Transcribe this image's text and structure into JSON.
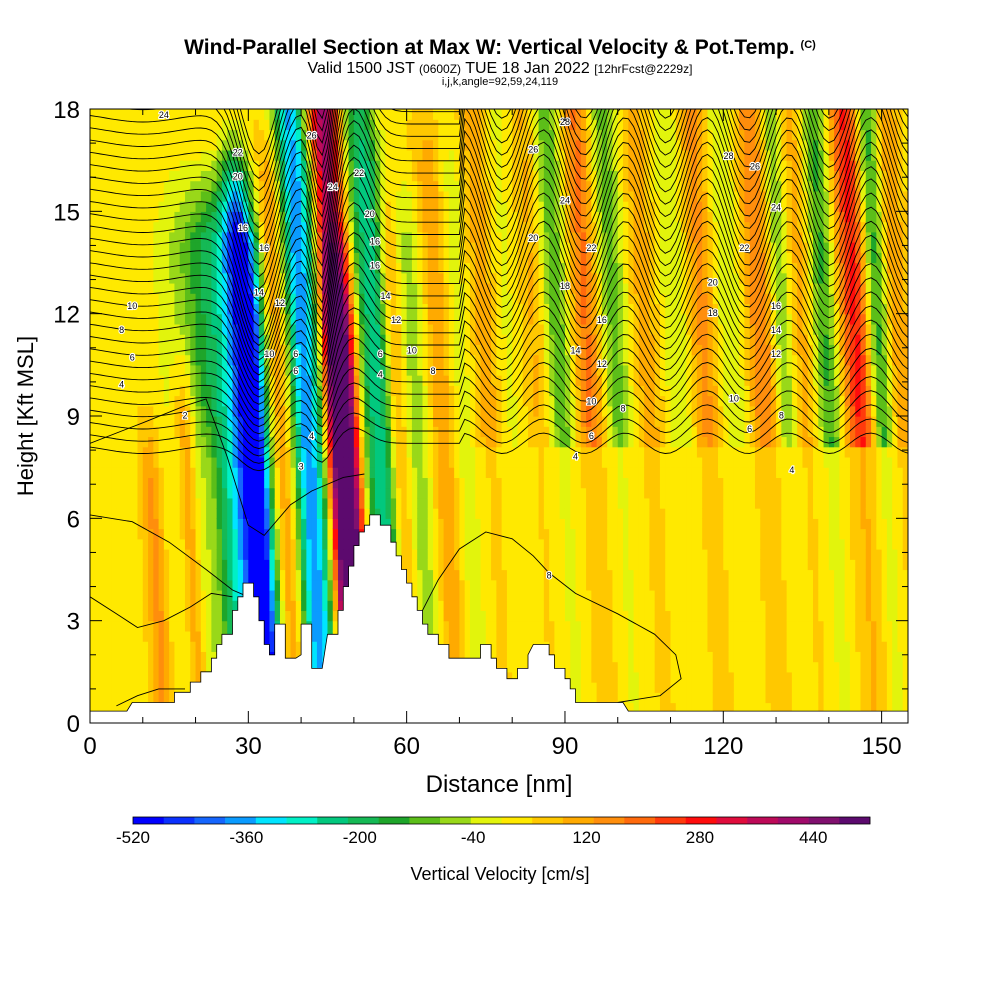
{
  "chart_data": {
    "type": "heatmap",
    "title": "Wind-Parallel Section at Max W: Vertical Velocity & Pot.Temp.",
    "title_mark": "(C)",
    "subtitle": {
      "prefix": "Valid 1500 JST",
      "utc": "(0600Z)",
      "date": "TUE 18 Jan 2022",
      "fcst": "[12hrFcst@2229z]"
    },
    "subtitle2": "i,j,k,angle=92,59,24,119",
    "xlabel": "Distance [nm]",
    "ylabel": "Height [Kft MSL]",
    "xlim": [
      0,
      155
    ],
    "ylim": [
      0,
      18
    ],
    "xticks": [
      "0",
      "30",
      "60",
      "90",
      "120",
      "150"
    ],
    "yticks": [
      "0",
      "3",
      "6",
      "9",
      "12",
      "15",
      "18"
    ],
    "colorbar": {
      "label": "Vertical Velocity [cm/s]",
      "tick_labels": [
        "-520",
        "-360",
        "-200",
        "-40",
        "120",
        "280",
        "440"
      ],
      "range": [
        -520,
        520
      ],
      "colors": [
        "#0000ff",
        "#0b31fe",
        "#1565fd",
        "#0a9bff",
        "#00e4ff",
        "#00f0c6",
        "#02c87e",
        "#15b955",
        "#1ea52a",
        "#5cbe19",
        "#99d819",
        "#e2f40c",
        "#ffe900",
        "#ffc800",
        "#ffaa00",
        "#ff8e0c",
        "#ff6a0c",
        "#ff3a0c",
        "#ff0c0c",
        "#e00c3c",
        "#bd0a58",
        "#a00a6a",
        "#80106e",
        "#5c0a6e"
      ]
    },
    "terrain": [
      [
        0,
        0.35
      ],
      [
        7,
        0.35
      ],
      [
        8,
        0.6
      ],
      [
        16,
        0.6
      ],
      [
        16,
        0.9
      ],
      [
        19,
        0.9
      ],
      [
        19,
        1.2
      ],
      [
        21,
        1.2
      ],
      [
        21,
        1.5
      ],
      [
        23,
        1.5
      ],
      [
        23,
        1.9
      ],
      [
        24,
        1.9
      ],
      [
        24,
        2.3
      ],
      [
        25,
        2.3
      ],
      [
        25,
        2.6
      ],
      [
        27,
        2.6
      ],
      [
        27,
        3.3
      ],
      [
        28,
        3.3
      ],
      [
        28,
        3.7
      ],
      [
        29,
        3.7
      ],
      [
        29,
        4.1
      ],
      [
        30,
        4.1
      ],
      [
        31,
        4.1
      ],
      [
        31,
        3.7
      ],
      [
        32,
        3.7
      ],
      [
        32,
        3.0
      ],
      [
        33,
        3.0
      ],
      [
        33,
        2.3
      ],
      [
        34,
        2.3
      ],
      [
        34,
        2.0
      ],
      [
        35,
        2.0
      ],
      [
        35,
        2.9
      ],
      [
        37,
        2.9
      ],
      [
        37,
        1.9
      ],
      [
        39,
        1.9
      ],
      [
        39,
        1.9
      ],
      [
        40,
        2.0
      ],
      [
        40,
        2.9
      ],
      [
        42,
        2.9
      ],
      [
        42,
        1.6
      ],
      [
        44,
        1.6
      ],
      [
        45,
        2.6
      ],
      [
        47,
        2.6
      ],
      [
        47,
        3.3
      ],
      [
        48,
        3.3
      ],
      [
        48,
        4.0
      ],
      [
        49,
        4.0
      ],
      [
        49,
        4.6
      ],
      [
        50,
        4.6
      ],
      [
        50,
        5.2
      ],
      [
        51,
        5.2
      ],
      [
        51,
        5.6
      ],
      [
        52,
        5.6
      ],
      [
        52,
        5.8
      ],
      [
        53,
        5.8
      ],
      [
        53,
        6.1
      ],
      [
        55,
        6.1
      ],
      [
        55,
        5.8
      ],
      [
        57,
        5.8
      ],
      [
        57,
        5.3
      ],
      [
        58,
        5.3
      ],
      [
        58,
        4.9
      ],
      [
        59,
        4.9
      ],
      [
        59,
        4.5
      ],
      [
        60,
        4.5
      ],
      [
        60,
        4.1
      ],
      [
        61,
        4.1
      ],
      [
        61,
        3.7
      ],
      [
        62,
        3.7
      ],
      [
        62,
        3.3
      ],
      [
        63,
        3.3
      ],
      [
        63,
        2.9
      ],
      [
        64,
        2.9
      ],
      [
        64,
        2.6
      ],
      [
        66,
        2.6
      ],
      [
        66,
        2.3
      ],
      [
        68,
        2.3
      ],
      [
        68,
        1.9
      ],
      [
        70,
        1.9
      ],
      [
        70,
        1.9
      ],
      [
        74,
        1.9
      ],
      [
        74,
        2.3
      ],
      [
        76,
        2.3
      ],
      [
        76,
        1.9
      ],
      [
        77,
        1.9
      ],
      [
        77,
        1.6
      ],
      [
        79,
        1.6
      ],
      [
        79,
        1.3
      ],
      [
        81,
        1.3
      ],
      [
        81,
        1.6
      ],
      [
        83,
        1.6
      ],
      [
        83,
        2.0
      ],
      [
        84,
        2.3
      ],
      [
        87,
        2.3
      ],
      [
        87,
        2.0
      ],
      [
        88,
        2.0
      ],
      [
        88,
        1.6
      ],
      [
        90,
        1.6
      ],
      [
        90,
        1.3
      ],
      [
        91,
        1.3
      ],
      [
        91,
        1.0
      ],
      [
        92,
        1.0
      ],
      [
        92,
        0.6
      ],
      [
        94,
        0.6
      ],
      [
        101,
        0.6
      ],
      [
        102,
        0.35
      ],
      [
        155,
        0.35
      ]
    ],
    "contour_labels": [
      {
        "x": 14,
        "y": 17.8,
        "v": "24"
      },
      {
        "x": 28,
        "y": 16.7,
        "v": "22"
      },
      {
        "x": 28,
        "y": 16.0,
        "v": "20"
      },
      {
        "x": 29,
        "y": 14.5,
        "v": "16"
      },
      {
        "x": 33,
        "y": 13.9,
        "v": "16"
      },
      {
        "x": 32,
        "y": 12.6,
        "v": "14"
      },
      {
        "x": 36,
        "y": 12.3,
        "v": "12"
      },
      {
        "x": 34,
        "y": 10.8,
        "v": "10"
      },
      {
        "x": 39,
        "y": 10.8,
        "v": "6"
      },
      {
        "x": 39,
        "y": 10.3,
        "v": "6"
      },
      {
        "x": 42,
        "y": 8.4,
        "v": "4"
      },
      {
        "x": 40,
        "y": 7.5,
        "v": "3"
      },
      {
        "x": 42,
        "y": 17.2,
        "v": "26"
      },
      {
        "x": 46,
        "y": 15.7,
        "v": "24"
      },
      {
        "x": 51,
        "y": 16.1,
        "v": "22"
      },
      {
        "x": 53,
        "y": 14.9,
        "v": "20"
      },
      {
        "x": 54,
        "y": 14.1,
        "v": "16"
      },
      {
        "x": 54,
        "y": 13.4,
        "v": "16"
      },
      {
        "x": 56,
        "y": 12.5,
        "v": "14"
      },
      {
        "x": 58,
        "y": 11.8,
        "v": "12"
      },
      {
        "x": 61,
        "y": 10.9,
        "v": "10"
      },
      {
        "x": 65,
        "y": 10.3,
        "v": "8"
      },
      {
        "x": 55,
        "y": 10.8,
        "v": "6"
      },
      {
        "x": 55,
        "y": 10.2,
        "v": "4"
      },
      {
        "x": 18,
        "y": 9.0,
        "v": "2"
      },
      {
        "x": 6,
        "y": 11.5,
        "v": "8"
      },
      {
        "x": 8,
        "y": 10.7,
        "v": "6"
      },
      {
        "x": 6,
        "y": 9.9,
        "v": "4"
      },
      {
        "x": 8,
        "y": 12.2,
        "v": "10"
      },
      {
        "x": 90,
        "y": 17.6,
        "v": "28"
      },
      {
        "x": 84,
        "y": 16.8,
        "v": "26"
      },
      {
        "x": 90,
        "y": 15.3,
        "v": "24"
      },
      {
        "x": 84,
        "y": 14.2,
        "v": "20"
      },
      {
        "x": 95,
        "y": 13.9,
        "v": "22"
      },
      {
        "x": 90,
        "y": 12.8,
        "v": "18"
      },
      {
        "x": 97,
        "y": 11.8,
        "v": "16"
      },
      {
        "x": 92,
        "y": 10.9,
        "v": "14"
      },
      {
        "x": 97,
        "y": 10.5,
        "v": "12"
      },
      {
        "x": 95,
        "y": 9.4,
        "v": "10"
      },
      {
        "x": 101,
        "y": 9.2,
        "v": "8"
      },
      {
        "x": 95,
        "y": 8.4,
        "v": "6"
      },
      {
        "x": 92,
        "y": 7.8,
        "v": "4"
      },
      {
        "x": 87,
        "y": 4.3,
        "v": "8"
      },
      {
        "x": 121,
        "y": 16.6,
        "v": "28"
      },
      {
        "x": 126,
        "y": 16.3,
        "v": "26"
      },
      {
        "x": 130,
        "y": 15.1,
        "v": "24"
      },
      {
        "x": 124,
        "y": 13.9,
        "v": "22"
      },
      {
        "x": 118,
        "y": 12.9,
        "v": "20"
      },
      {
        "x": 118,
        "y": 12.0,
        "v": "18"
      },
      {
        "x": 130,
        "y": 12.2,
        "v": "16"
      },
      {
        "x": 130,
        "y": 11.5,
        "v": "14"
      },
      {
        "x": 130,
        "y": 10.8,
        "v": "12"
      },
      {
        "x": 122,
        "y": 9.5,
        "v": "10"
      },
      {
        "x": 131,
        "y": 9.0,
        "v": "8"
      },
      {
        "x": 125,
        "y": 8.6,
        "v": "6"
      },
      {
        "x": 133,
        "y": 7.4,
        "v": "4"
      }
    ]
  }
}
